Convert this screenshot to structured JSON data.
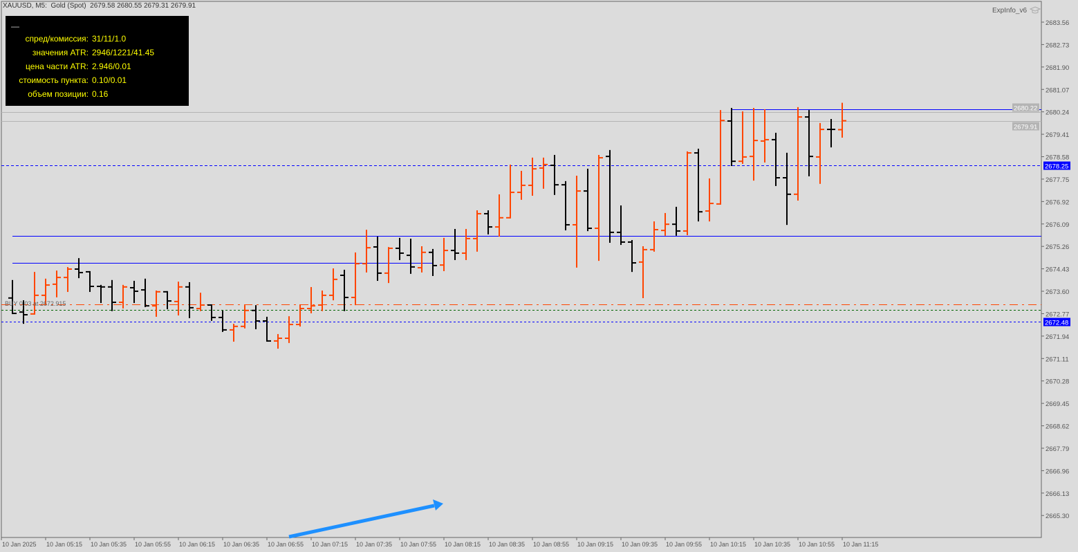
{
  "header": {
    "symbol_line": "XAUUSD, M5:  Gold (Spot)  2679.58 2680.55 2679.31 2679.91"
  },
  "expert": {
    "name": "ExpInfo_v6",
    "icon": "mortarboard-icon"
  },
  "info_panel": {
    "minimize": "—",
    "rows": [
      {
        "label": "спред/комиссия:",
        "value": "31/11/1.0"
      },
      {
        "label": "значения ATR:",
        "value": "2946/1221/41.45"
      },
      {
        "label": "цена части ATR:",
        "value": "2.946/0.01"
      },
      {
        "label": "стоимость пункта:",
        "value": "0.10/0.01"
      },
      {
        "label": "объем позиции:",
        "value": "0.16"
      }
    ]
  },
  "trade_label": "BUY 0.03 at 2672.915",
  "colors": {
    "background": "#dcdcdc",
    "bull": "#ff4500",
    "bear": "#000000",
    "level": "#0000ff",
    "arrow": "#1e90ff",
    "order": "#ff4500",
    "entry": "#006400",
    "bidask": "#b4b4b4"
  },
  "chart_data": {
    "type": "ohlc",
    "price_axis": {
      "range": [
        2665.0,
        2684.3
      ],
      "ticks": [
        "2683.56",
        "2682.73",
        "2681.90",
        "2681.07",
        "2680.24",
        "2679.41",
        "2678.58",
        "2677.75",
        "2676.92",
        "2676.09",
        "2675.26",
        "2674.43",
        "2673.60",
        "2672.77",
        "2671.94",
        "2671.11",
        "2670.28",
        "2669.45",
        "2668.62",
        "2667.79",
        "2666.96",
        "2666.13",
        "2665.30"
      ]
    },
    "time_axis": {
      "labels": [
        "10 Jan 2025",
        "10 Jan 05:15",
        "10 Jan 05:35",
        "10 Jan 05:55",
        "10 Jan 06:15",
        "10 Jan 06:35",
        "10 Jan 06:55",
        "10 Jan 07:15",
        "10 Jan 07:35",
        "10 Jan 07:55",
        "10 Jan 08:15",
        "10 Jan 08:35",
        "10 Jan 08:55",
        "10 Jan 09:15",
        "10 Jan 09:35",
        "10 Jan 09:55",
        "10 Jan 10:15",
        "10 Jan 10:35",
        "10 Jan 10:55",
        "10 Jan 11:15"
      ]
    },
    "bars": [
      [
        2673.35,
        2673.99,
        2672.78,
        2672.78
      ],
      [
        2672.83,
        2673.24,
        2672.42,
        2672.73
      ],
      [
        2672.76,
        2674.29,
        2672.76,
        2673.45
      ],
      [
        2673.45,
        2674.04,
        2673.14,
        2673.83
      ],
      [
        2673.86,
        2674.34,
        2673.4,
        2674.11
      ],
      [
        2674.11,
        2674.47,
        2673.6,
        2674.42
      ],
      [
        2674.42,
        2674.8,
        2674.11,
        2674.29
      ],
      [
        2674.32,
        2674.32,
        2673.6,
        2673.78
      ],
      [
        2673.78,
        2673.81,
        2673.19,
        2673.76
      ],
      [
        2673.76,
        2673.99,
        2672.89,
        2673.19
      ],
      [
        2673.19,
        2673.81,
        2672.99,
        2673.76
      ],
      [
        2673.73,
        2673.96,
        2673.19,
        2673.6
      ],
      [
        2673.65,
        2674.04,
        2673.04,
        2673.06
      ],
      [
        2673.06,
        2673.6,
        2672.68,
        2673.58
      ],
      [
        2673.58,
        2673.58,
        2672.96,
        2673.24
      ],
      [
        2673.22,
        2673.93,
        2672.73,
        2673.76
      ],
      [
        2673.76,
        2673.91,
        2672.63,
        2672.99
      ],
      [
        2672.96,
        2673.52,
        2672.89,
        2673.09
      ],
      [
        2673.09,
        2673.09,
        2672.53,
        2672.63
      ],
      [
        2672.63,
        2672.86,
        2672.12,
        2672.17
      ],
      [
        2672.17,
        2672.37,
        2671.76,
        2672.3
      ],
      [
        2672.3,
        2673.06,
        2672.25,
        2672.89
      ],
      [
        2672.89,
        2673.06,
        2672.22,
        2672.5
      ],
      [
        2672.5,
        2672.63,
        2671.76,
        2671.76
      ],
      [
        2671.76,
        2671.99,
        2671.5,
        2671.86
      ],
      [
        2671.86,
        2672.65,
        2671.71,
        2672.37
      ],
      [
        2672.37,
        2673.09,
        2672.32,
        2672.96
      ],
      [
        2672.96,
        2673.73,
        2672.81,
        2673.06
      ],
      [
        2673.09,
        2673.6,
        2672.89,
        2673.45
      ],
      [
        2673.45,
        2674.42,
        2673.29,
        2674.04
      ],
      [
        2674.19,
        2674.37,
        2672.89,
        2673.37
      ],
      [
        2673.37,
        2675.01,
        2673.11,
        2674.62
      ],
      [
        2674.62,
        2675.85,
        2674.32,
        2675.21
      ],
      [
        2675.24,
        2675.6,
        2674.01,
        2674.27
      ],
      [
        2674.27,
        2675.21,
        2673.93,
        2675.19
      ],
      [
        2675.19,
        2675.55,
        2674.78,
        2675.01
      ],
      [
        2674.93,
        2675.52,
        2674.27,
        2674.5
      ],
      [
        2674.47,
        2675.24,
        2674.32,
        2675.04
      ],
      [
        2675.04,
        2675.14,
        2674.19,
        2674.55
      ],
      [
        2674.57,
        2675.55,
        2674.37,
        2675.11
      ],
      [
        2675.11,
        2675.88,
        2674.78,
        2675.01
      ],
      [
        2675.01,
        2675.88,
        2674.78,
        2675.55
      ],
      [
        2675.55,
        2676.57,
        2675.09,
        2676.47
      ],
      [
        2676.47,
        2676.57,
        2675.73,
        2675.98
      ],
      [
        2675.98,
        2677.16,
        2675.65,
        2676.32
      ],
      [
        2676.32,
        2678.26,
        2676.32,
        2677.26
      ],
      [
        2677.26,
        2678.03,
        2677.01,
        2677.52
      ],
      [
        2677.52,
        2678.52,
        2677.16,
        2678.13
      ],
      [
        2678.16,
        2678.52,
        2677.42,
        2678.29
      ],
      [
        2678.26,
        2678.62,
        2677.19,
        2677.54
      ],
      [
        2677.54,
        2677.65,
        2675.88,
        2676.06
      ],
      [
        2676.06,
        2677.85,
        2674.5,
        2677.31
      ],
      [
        2677.31,
        2678.11,
        2675.85,
        2675.93
      ],
      [
        2675.93,
        2678.62,
        2674.75,
        2678.54
      ],
      [
        2678.59,
        2678.8,
        2675.42,
        2675.78
      ],
      [
        2675.78,
        2676.75,
        2675.34,
        2675.42
      ],
      [
        2675.42,
        2675.47,
        2674.34,
        2674.65
      ],
      [
        2674.68,
        2675.24,
        2673.37,
        2675.14
      ],
      [
        2675.14,
        2676.16,
        2675.09,
        2675.88
      ],
      [
        2675.85,
        2676.47,
        2675.68,
        2676.08
      ],
      [
        2676.08,
        2676.7,
        2675.68,
        2675.83
      ],
      [
        2675.83,
        2678.75,
        2675.7,
        2678.72
      ],
      [
        2678.72,
        2678.85,
        2676.21,
        2676.54
      ],
      [
        2676.57,
        2677.75,
        2676.21,
        2676.85
      ],
      [
        2676.83,
        2680.28,
        2676.83,
        2679.92
      ],
      [
        2679.9,
        2680.36,
        2678.26,
        2678.41
      ],
      [
        2678.41,
        2680.23,
        2678.34,
        2678.57
      ],
      [
        2678.59,
        2680.36,
        2677.72,
        2679.18
      ],
      [
        2679.16,
        2680.31,
        2678.39,
        2679.21
      ],
      [
        2679.21,
        2679.44,
        2677.52,
        2677.8
      ],
      [
        2677.8,
        2678.7,
        2676.08,
        2677.19
      ],
      [
        2677.19,
        2680.39,
        2676.98,
        2680.05
      ],
      [
        2680.05,
        2680.28,
        2677.88,
        2678.59
      ],
      [
        2678.57,
        2679.8,
        2677.6,
        2679.59
      ],
      [
        2679.59,
        2679.95,
        2678.95,
        2679.59
      ],
      [
        2679.58,
        2680.55,
        2679.31,
        2679.91
      ]
    ],
    "levels": [
      {
        "price": 2680.33,
        "style": "solid",
        "color": "#0000ff",
        "from_bar": 65
      },
      {
        "price": 2675.65,
        "style": "solid",
        "color": "#0000ff",
        "from_bar": 0
      },
      {
        "price": 2674.65,
        "style": "solid",
        "color": "#0000ff",
        "from_bar": 0,
        "to_bar": 38
      },
      {
        "price": 2678.25,
        "style": "dashed",
        "color": "#0000ff",
        "label": "2678.25"
      },
      {
        "price": 2673.11,
        "style": "dashdot",
        "color": "#ff4500"
      },
      {
        "price": 2672.92,
        "style": "dotted",
        "color": "#006400"
      },
      {
        "price": 2672.48,
        "style": "dotted",
        "color": "#0000ff",
        "label": "2672.48"
      },
      {
        "price": 2680.22,
        "style": "solid",
        "color": "#b4b4b4",
        "label": "2680.22"
      },
      {
        "price": 2679.91,
        "style": "solid",
        "color": "#b4b4b4",
        "label": "2679.91"
      }
    ]
  }
}
